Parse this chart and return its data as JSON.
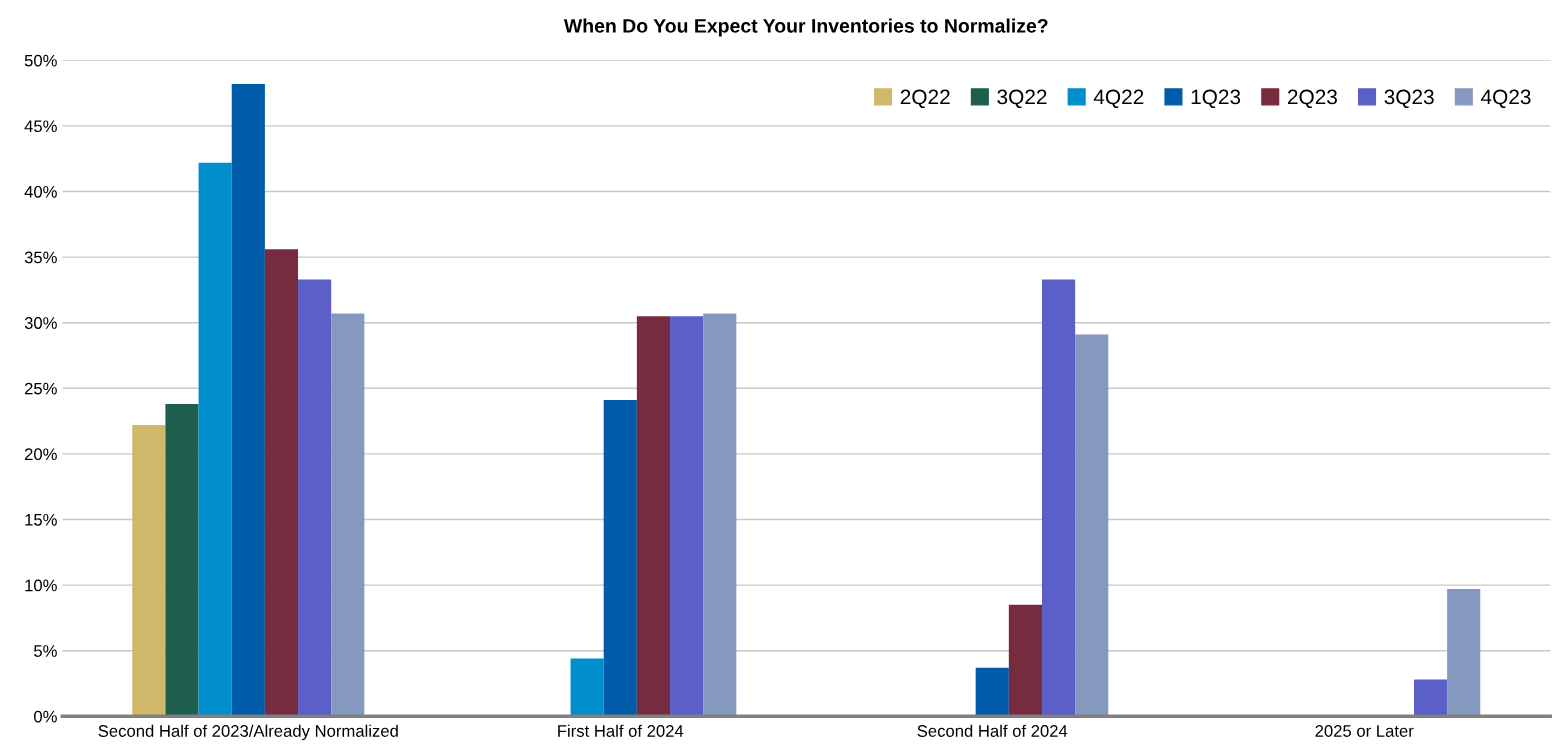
{
  "chart_data": {
    "type": "bar",
    "title": "When Do You Expect Your Inventories to Normalize?",
    "categories": [
      "Second Half of 2023/Already Normalized",
      "First Half of 2024",
      "Second Half of 2024",
      "2025 or Later"
    ],
    "series": [
      {
        "name": "2Q22",
        "color": "#d0b86a",
        "values": [
          22.2,
          null,
          null,
          null
        ]
      },
      {
        "name": "3Q22",
        "color": "#1e5e4f",
        "values": [
          23.8,
          null,
          null,
          null
        ]
      },
      {
        "name": "4Q22",
        "color": "#008fcc",
        "values": [
          42.2,
          4.4,
          null,
          null
        ]
      },
      {
        "name": "1Q23",
        "color": "#005ca8",
        "values": [
          48.2,
          24.1,
          3.7,
          null
        ]
      },
      {
        "name": "2Q23",
        "color": "#772b3e",
        "values": [
          35.6,
          30.5,
          8.5,
          null
        ]
      },
      {
        "name": "3Q23",
        "color": "#5b5fc7",
        "values": [
          33.3,
          30.5,
          33.3,
          2.8
        ]
      },
      {
        "name": "4Q23",
        "color": "#8598c0",
        "values": [
          30.7,
          30.7,
          29.1,
          9.7
        ]
      }
    ],
    "ylim": [
      0,
      50
    ],
    "yticks": [
      {
        "value": 0,
        "label": "0%"
      },
      {
        "value": 5,
        "label": "5%"
      },
      {
        "value": 10,
        "label": "10%"
      },
      {
        "value": 15,
        "label": "15%"
      },
      {
        "value": 20,
        "label": "20%"
      },
      {
        "value": 25,
        "label": "25%"
      },
      {
        "value": 30,
        "label": "30%"
      },
      {
        "value": 35,
        "label": "35%"
      },
      {
        "value": 40,
        "label": "40%"
      },
      {
        "value": 45,
        "label": "45%"
      },
      {
        "value": 50,
        "label": "50%"
      }
    ],
    "grid": "y",
    "legend": "top right"
  }
}
